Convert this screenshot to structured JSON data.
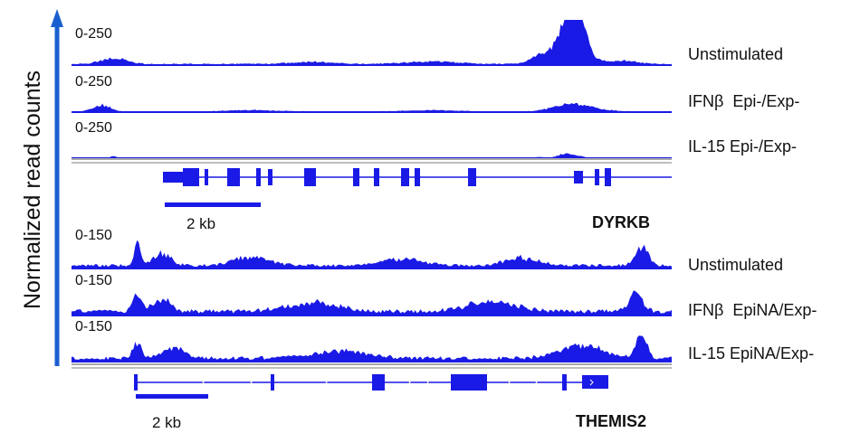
{
  "colors": {
    "signal": "#1a1ae6",
    "gene": "#1a1ae6",
    "arrow": "#1a5fd0",
    "divider": "#a9a9a9",
    "text": "#111111"
  },
  "chart_data": {
    "type": "area",
    "ylabel": "Normalized read counts",
    "panels": [
      {
        "gene": "DYRKB",
        "scale_bar_label": "2 kb",
        "ylim_labels": [
          "0-250",
          "0-250",
          "0-250"
        ],
        "tracks": [
          {
            "name": "Unstimulated",
            "range_label": "0-250",
            "ymax": 250,
            "baseline": 6,
            "peaks": [
              {
                "pos": 0.07,
                "height": 32,
                "width": 0.03
              },
              {
                "pos": 0.4,
                "height": 12,
                "width": 0.05
              },
              {
                "pos": 0.6,
                "height": 14,
                "width": 0.06
              },
              {
                "pos": 0.78,
                "height": 38,
                "width": 0.02
              },
              {
                "pos": 0.83,
                "height": 92,
                "width": 0.04
              },
              {
                "pos": 0.825,
                "height": 178,
                "width": 0.018
              },
              {
                "pos": 0.845,
                "height": 238,
                "width": 0.016
              },
              {
                "pos": 0.92,
                "height": 18,
                "width": 0.03
              }
            ]
          },
          {
            "name": "IFNβ  Epi-/Exp-",
            "range_label": "0-250",
            "ymax": 250,
            "baseline": 3,
            "peaks": [
              {
                "pos": 0.05,
                "height": 35,
                "width": 0.02
              },
              {
                "pos": 0.3,
                "height": 8,
                "width": 0.06
              },
              {
                "pos": 0.6,
                "height": 8,
                "width": 0.06
              },
              {
                "pos": 0.83,
                "height": 30,
                "width": 0.04
              },
              {
                "pos": 0.85,
                "height": 16,
                "width": 0.05
              }
            ]
          },
          {
            "name": "IL-15 Epi-/Exp-",
            "range_label": "0-250",
            "ymax": 250,
            "baseline": 1.5,
            "peaks": [
              {
                "pos": 0.07,
                "height": 10,
                "width": 0.008
              },
              {
                "pos": 0.78,
                "height": 6,
                "width": 0.01
              },
              {
                "pos": 0.82,
                "height": 18,
                "width": 0.015
              },
              {
                "pos": 0.84,
                "height": 10,
                "width": 0.02
              }
            ]
          }
        ]
      },
      {
        "gene": "THEMIS2",
        "scale_bar_label": "2 kb",
        "ylim_labels": [
          "0-150",
          "0-150",
          "0-150"
        ],
        "tracks": [
          {
            "name": "Unstimulated",
            "range_label": "0-150",
            "ymax": 150,
            "baseline": 10,
            "peaks": [
              {
                "pos": 0.11,
                "height": 72,
                "width": 0.008
              },
              {
                "pos": 0.15,
                "height": 40,
                "width": 0.02
              },
              {
                "pos": 0.3,
                "height": 30,
                "width": 0.04
              },
              {
                "pos": 0.55,
                "height": 22,
                "width": 0.05
              },
              {
                "pos": 0.75,
                "height": 25,
                "width": 0.04
              },
              {
                "pos": 0.95,
                "height": 60,
                "width": 0.015
              }
            ]
          },
          {
            "name": "IFNβ  EpiNA/Exp-",
            "range_label": "0-150",
            "ymax": 150,
            "baseline": 14,
            "peaks": [
              {
                "pos": 0.11,
                "height": 62,
                "width": 0.01
              },
              {
                "pos": 0.15,
                "height": 42,
                "width": 0.02
              },
              {
                "pos": 0.4,
                "height": 28,
                "width": 0.06
              },
              {
                "pos": 0.7,
                "height": 30,
                "width": 0.06
              },
              {
                "pos": 0.94,
                "height": 62,
                "width": 0.015
              }
            ]
          },
          {
            "name": "IL-15 EpiNA/Exp-",
            "range_label": "0-150",
            "ymax": 150,
            "baseline": 12,
            "peaks": [
              {
                "pos": 0.11,
                "height": 52,
                "width": 0.01
              },
              {
                "pos": 0.17,
                "height": 34,
                "width": 0.025
              },
              {
                "pos": 0.45,
                "height": 24,
                "width": 0.06
              },
              {
                "pos": 0.85,
                "height": 44,
                "width": 0.05
              },
              {
                "pos": 0.95,
                "height": 82,
                "width": 0.012
              }
            ]
          }
        ]
      }
    ]
  }
}
